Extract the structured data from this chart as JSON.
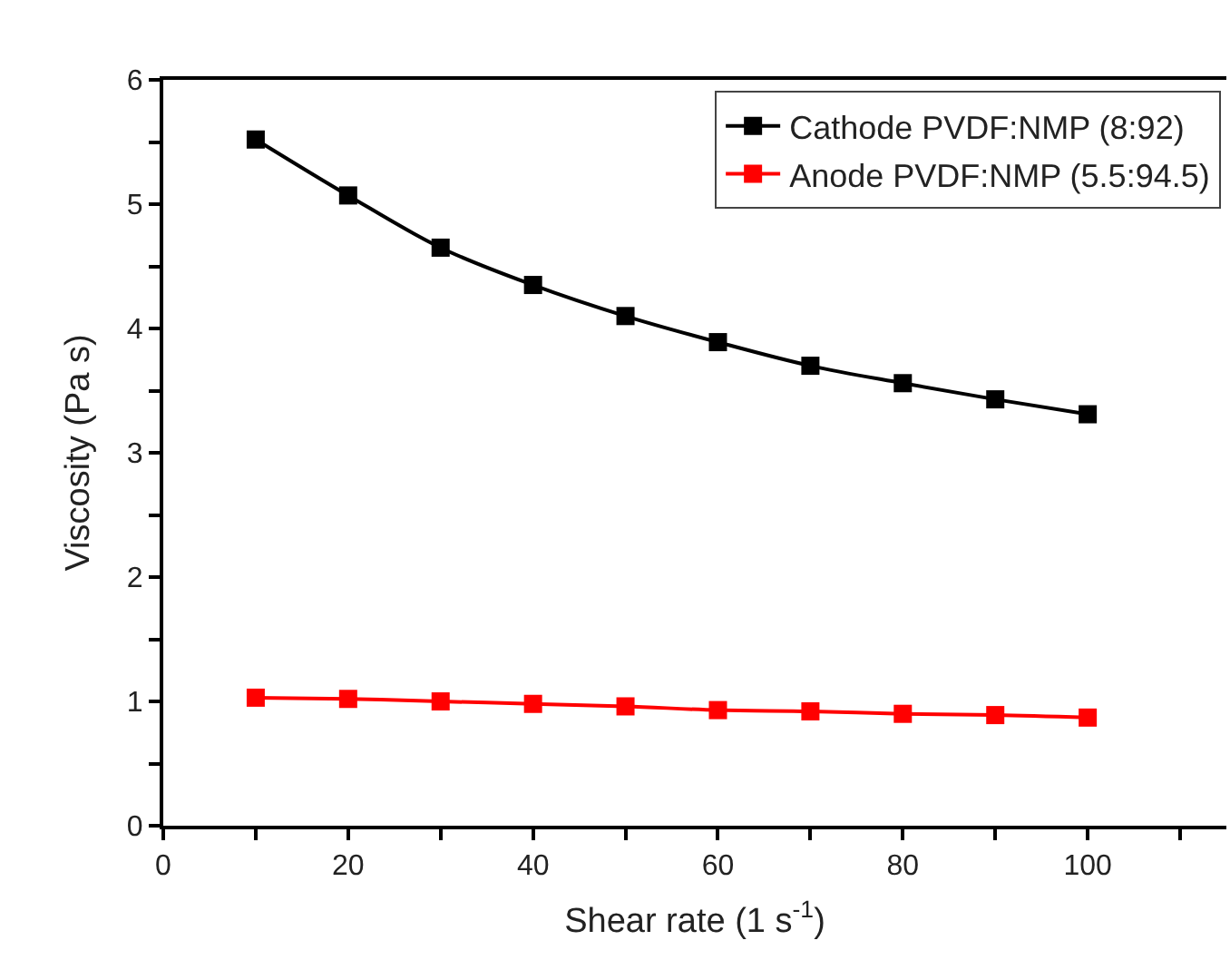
{
  "chart_data": {
    "type": "line",
    "xlabel": "Shear rate (1 s$^{-1}$)",
    "ylabel": "Viscosity (Pa s)",
    "x": [
      10,
      20,
      30,
      40,
      50,
      60,
      70,
      80,
      90,
      100
    ],
    "series": [
      {
        "name": "Cathode PVDF:NMP (8:92)",
        "color": "#000000",
        "values": [
          5.52,
          5.07,
          4.65,
          4.35,
          4.1,
          3.89,
          3.7,
          3.56,
          3.43,
          3.31
        ]
      },
      {
        "name": "Anode PVDF:NMP (5.5:94.5)",
        "color": "#ff0000",
        "values": [
          1.03,
          1.02,
          1.0,
          0.98,
          0.96,
          0.93,
          0.92,
          0.9,
          0.89,
          0.87
        ]
      }
    ],
    "xlim": [
      0,
      115
    ],
    "ylim": [
      0,
      6
    ],
    "xticks": [
      0,
      {
        "value": 10,
        "label": null
      },
      20,
      {
        "value": 30,
        "label": null
      },
      40,
      {
        "value": 50,
        "label": null
      },
      60,
      {
        "value": 70,
        "label": null
      },
      80,
      {
        "value": 90,
        "label": null
      },
      100,
      {
        "value": 110,
        "label": null
      }
    ],
    "yticks": [
      0,
      {
        "value": 0.5,
        "label": null
      },
      1,
      {
        "value": 1.5,
        "label": null
      },
      2,
      {
        "value": 2.5,
        "label": null
      },
      3,
      {
        "value": 3.5,
        "label": null
      },
      4,
      {
        "value": 4.5,
        "label": null
      },
      5,
      {
        "value": 5.5,
        "label": null
      },
      6
    ],
    "legend": "top right",
    "marker": "square",
    "line_style": "solid"
  }
}
